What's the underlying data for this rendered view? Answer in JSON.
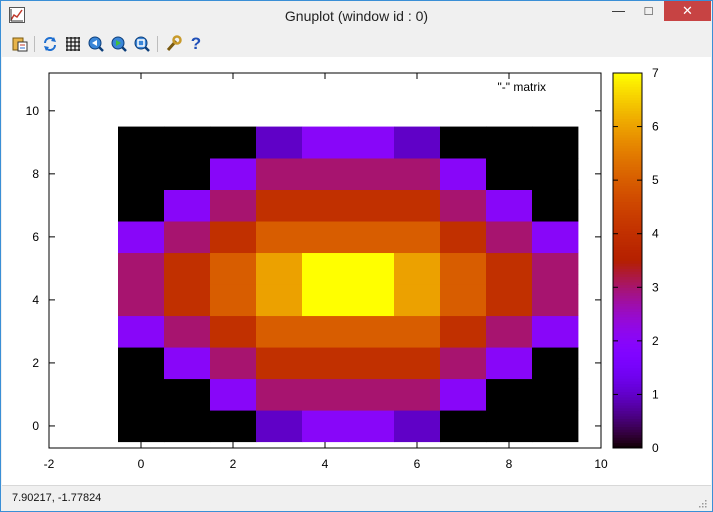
{
  "window": {
    "title": "Gnuplot (window id : 0)",
    "minimize_glyph": "—",
    "maximize_glyph": "□",
    "close_glyph": "✕"
  },
  "toolbar": {
    "icons": [
      "copy-to-clipboard-icon",
      "replot-icon",
      "grid-icon",
      "zoom-previous-icon",
      "zoom-next-icon",
      "zoom-autoscale-icon",
      "options-icon",
      "help-icon"
    ],
    "help_glyph": "?"
  },
  "status": {
    "coords": "7.90217, -1.77824"
  },
  "chart_data": {
    "type": "heatmap",
    "title": "",
    "xlabel": "",
    "ylabel": "",
    "legend": {
      "entries": [
        "\"-\" matrix"
      ],
      "placement": "top-right"
    },
    "xlim": [
      -2,
      10
    ],
    "ylim": [
      -0.7,
      11.2
    ],
    "xticks": [
      "-2",
      "0",
      "2",
      "4",
      "6",
      "8",
      "10"
    ],
    "yticks": [
      "0",
      "2",
      "4",
      "6",
      "8",
      "10"
    ],
    "cbrange": [
      0,
      7
    ],
    "cbticks": [
      "0",
      "1",
      "2",
      "3",
      "4",
      "5",
      "6",
      "7"
    ],
    "palette": "gnuplot rgbformulae 7,5,15",
    "x": [
      0,
      1,
      2,
      3,
      4,
      5,
      6,
      7,
      8,
      9
    ],
    "y": [
      0,
      1,
      2,
      3,
      4,
      5,
      6,
      7,
      8,
      9
    ],
    "matrix": [
      [
        0,
        0,
        0,
        1,
        2,
        2,
        1,
        0,
        0,
        0
      ],
      [
        0,
        0,
        2,
        3,
        3,
        3,
        3,
        2,
        0,
        0
      ],
      [
        0,
        2,
        3,
        4,
        4,
        4,
        4,
        3,
        2,
        0
      ],
      [
        2,
        3,
        4,
        5,
        5,
        5,
        5,
        4,
        3,
        2
      ],
      [
        3,
        4,
        5,
        6,
        7,
        7,
        6,
        5,
        4,
        3
      ],
      [
        3,
        4,
        5,
        6,
        7,
        7,
        6,
        5,
        4,
        3
      ],
      [
        2,
        3,
        4,
        5,
        5,
        5,
        5,
        4,
        3,
        2
      ],
      [
        0,
        2,
        3,
        4,
        4,
        4,
        4,
        3,
        2,
        0
      ],
      [
        0,
        0,
        2,
        3,
        3,
        3,
        3,
        2,
        0,
        0
      ],
      [
        0,
        0,
        0,
        1,
        2,
        2,
        1,
        0,
        0,
        0
      ]
    ]
  }
}
